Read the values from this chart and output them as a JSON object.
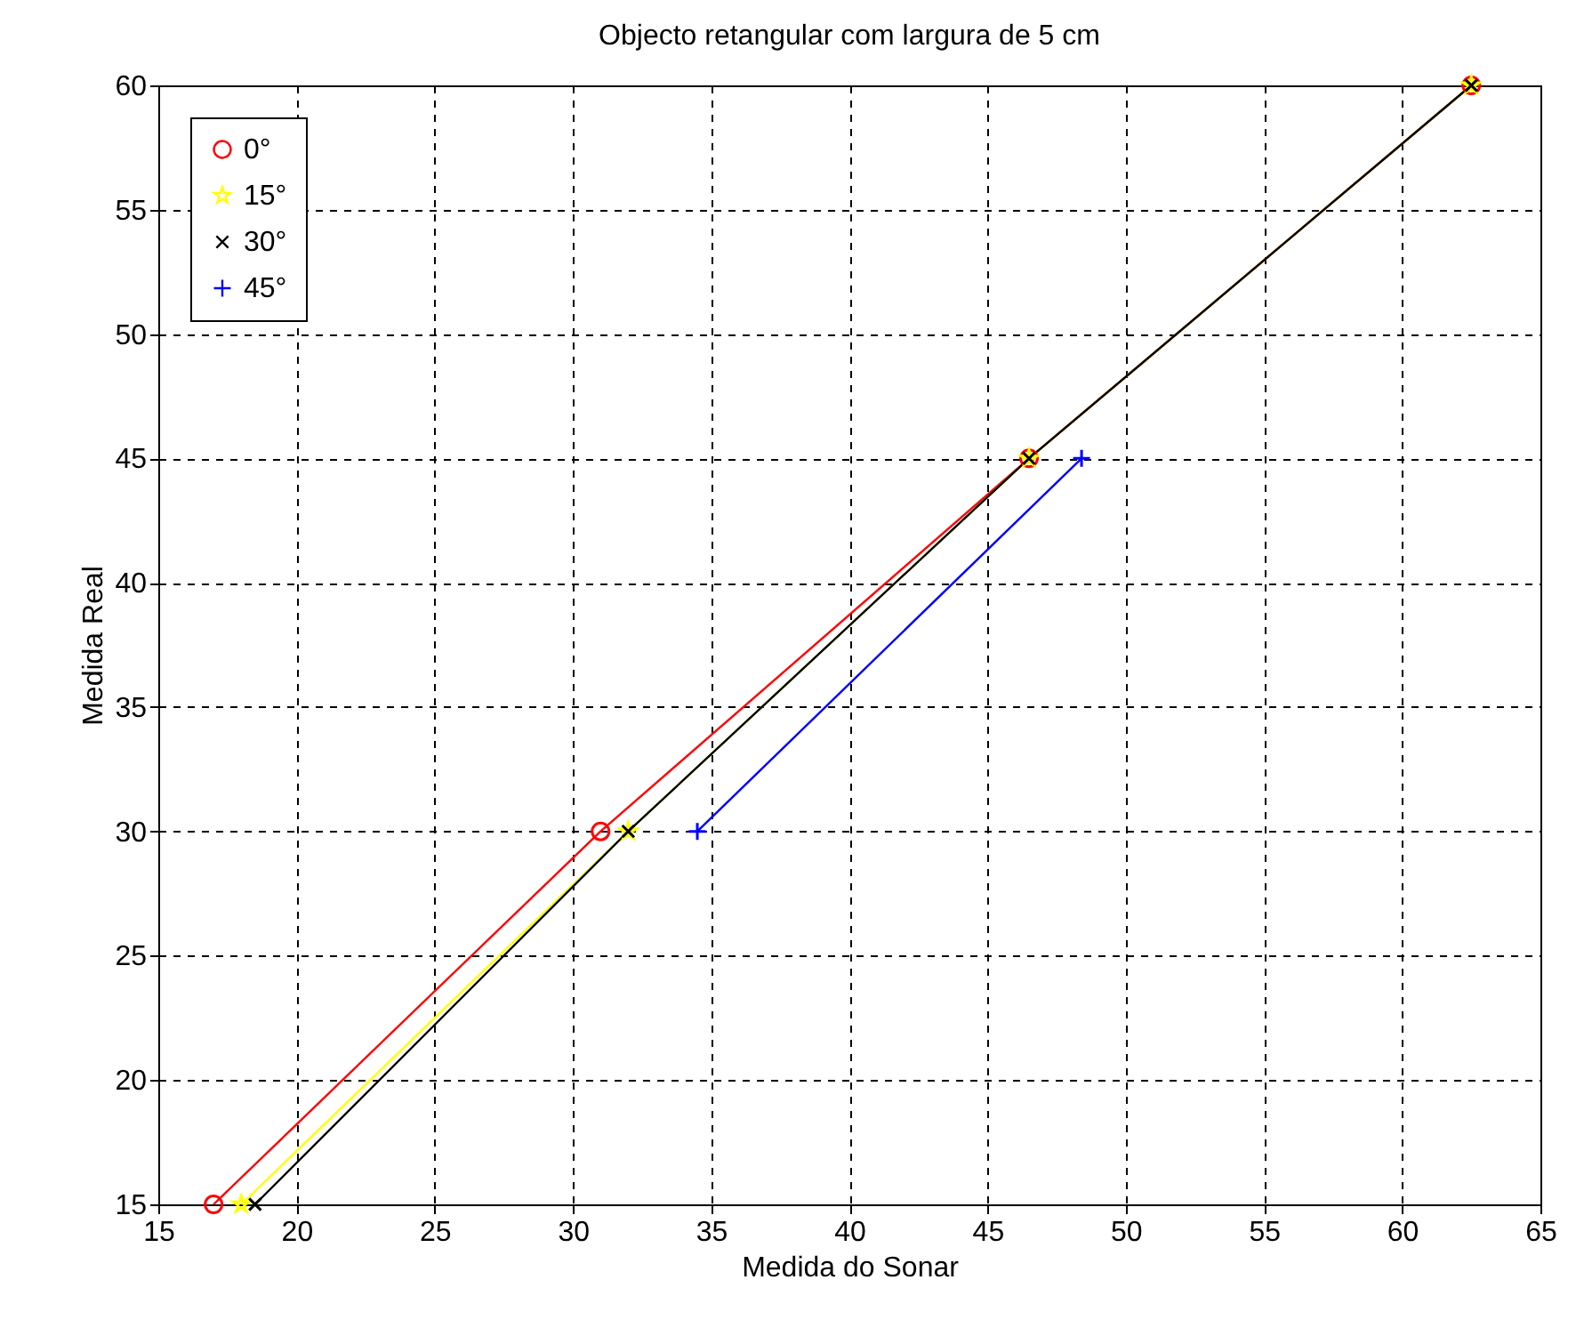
{
  "chart_data": {
    "type": "line",
    "title": "Objecto retangular com largura de 5 cm",
    "xlabel": "Medida do Sonar",
    "ylabel": "Medida Real",
    "xlim": [
      15,
      65
    ],
    "xticks": [
      15,
      20,
      25,
      30,
      35,
      40,
      45,
      50,
      55,
      60,
      65
    ],
    "ylim": [
      15,
      60
    ],
    "yticks": [
      15,
      20,
      25,
      30,
      35,
      40,
      45,
      50,
      55,
      60
    ],
    "grid": true,
    "legend": "top left",
    "series": [
      {
        "name": "0°",
        "color": "#ff0000",
        "marker": "circle",
        "x": [
          17,
          31,
          46.5,
          62.5
        ],
        "values": [
          15,
          30,
          45,
          60
        ]
      },
      {
        "name": "15°",
        "color": "#ffff00",
        "marker": "star",
        "x": [
          18,
          32,
          46.5,
          62.5
        ],
        "values": [
          15,
          30,
          45,
          60
        ]
      },
      {
        "name": "30°",
        "color": "#000000",
        "marker": "x",
        "x": [
          18.5,
          32,
          46.5,
          62.5
        ],
        "values": [
          15,
          30,
          45,
          60
        ]
      },
      {
        "name": "45°",
        "color": "#0000ff",
        "marker": "cross",
        "x": [
          34.5,
          48.4
        ],
        "values": [
          30,
          45
        ]
      }
    ]
  }
}
